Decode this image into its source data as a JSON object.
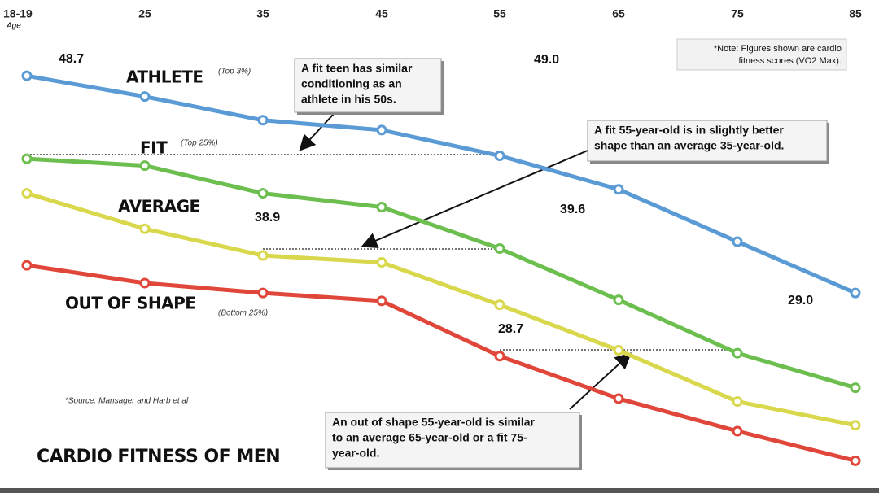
{
  "chart_data": {
    "type": "line",
    "title": "CARDIO FITNESS OF MEN",
    "x_label": "Age",
    "categories": [
      "18-19",
      "25",
      "35",
      "45",
      "55",
      "65",
      "75",
      "85"
    ],
    "ylim": [
      15,
      60
    ],
    "series": [
      {
        "name": "ATHLETE",
        "tag": "(Top 3%)",
        "color": "#5b9bd5",
        "values": [
          57.1,
          55.0,
          52.6,
          51.6,
          49.0,
          45.6,
          40.3,
          35.1
        ],
        "value_labels": [
          null,
          null,
          null,
          null,
          "49.0",
          null,
          null,
          null
        ]
      },
      {
        "name": "FIT",
        "tag": "(Top 25%)",
        "color": "#6cbf4f",
        "values": [
          48.7,
          48.0,
          45.2,
          43.8,
          39.6,
          34.4,
          29.0,
          25.5
        ],
        "value_labels": [
          "48.7",
          null,
          null,
          null,
          "39.6",
          null,
          "29.0",
          null
        ]
      },
      {
        "name": "AVERAGE",
        "color": "#d9d84c",
        "values": [
          45.2,
          41.6,
          38.9,
          38.2,
          33.9,
          29.3,
          24.1,
          21.7
        ],
        "value_labels": [
          null,
          null,
          "38.9",
          null,
          null,
          null,
          null,
          null
        ]
      },
      {
        "name": "OUT OF SHAPE",
        "tag": "(Bottom 25%)",
        "color": "#e0473a",
        "values": [
          37.9,
          36.1,
          35.1,
          34.3,
          28.7,
          24.4,
          21.1,
          18.1
        ],
        "value_labels": [
          null,
          null,
          null,
          null,
          "28.7",
          null,
          null,
          null
        ]
      }
    ],
    "note": [
      "*Note: Figures shown are cardio",
      "fitness scores (VO2 Max)."
    ],
    "source": "*Source: Mansager and Harb et al",
    "callouts": [
      {
        "lines": [
          "A fit teen has similar",
          "conditioning as an",
          "athlete in his 50s."
        ]
      },
      {
        "lines": [
          "A fit 55-year-old is in slightly better",
          "shape than an average 35-year-old."
        ]
      },
      {
        "lines": [
          "An out of shape 55-year-old is similar",
          "to an average 65-year-old or a fit 75-",
          "year-old."
        ]
      }
    ]
  }
}
